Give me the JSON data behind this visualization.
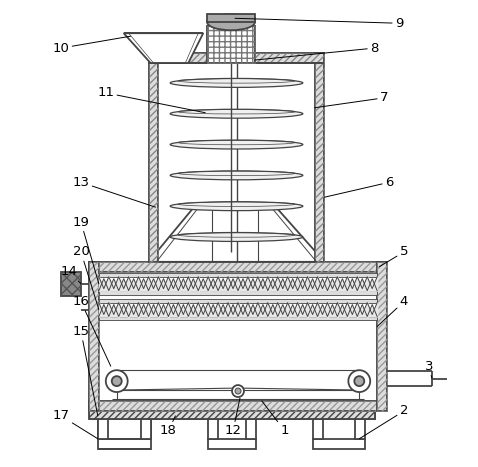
{
  "lc": "#444444",
  "lw": 1.3,
  "bg": "white",
  "gray_light": "#dddddd",
  "gray_mid": "#aaaaaa",
  "gray_dark": "#888888",
  "gray_hatch": "#cccccc"
}
